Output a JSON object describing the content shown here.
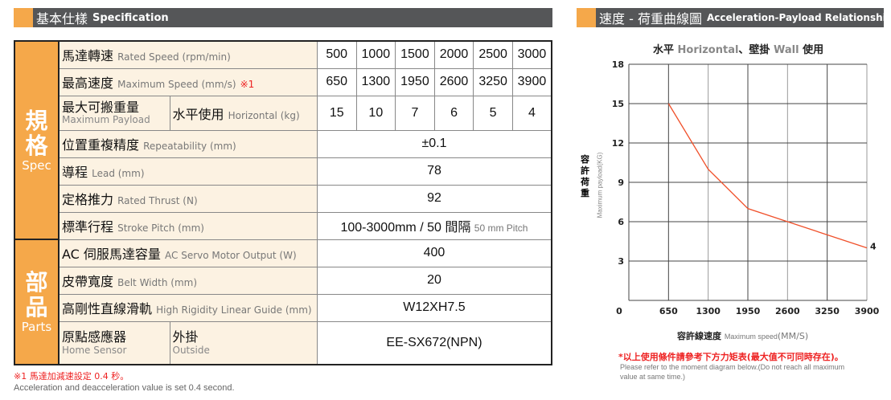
{
  "spec_header": {
    "zh": "基本仕樣",
    "en": "Specification"
  },
  "chart_header": {
    "zh": "速度 - 荷重曲線圖",
    "en": "Acceleration-Payload Relationship"
  },
  "sections": {
    "spec_zh1": "規",
    "spec_zh2": "格",
    "spec_en": "Spec",
    "parts_zh1": "部",
    "parts_zh2": "品",
    "parts_en": "Parts"
  },
  "rows": {
    "rated_speed": {
      "zh": "馬達轉速",
      "en": "Rated Speed (rpm/min)",
      "values": [
        "500",
        "1000",
        "1500",
        "2000",
        "2500",
        "3000"
      ]
    },
    "max_speed": {
      "zh": "最高速度",
      "en": "Maximum Speed (mm/s)",
      "mark": "※1",
      "values": [
        "650",
        "1300",
        "1950",
        "2600",
        "3250",
        "3900"
      ]
    },
    "payload": {
      "zh": "最大可搬重量",
      "en": "Maximum Payload",
      "sub_zh": "水平使用",
      "sub_en": "Horizontal (kg)",
      "values": [
        "15",
        "10",
        "7",
        "6",
        "5",
        "4"
      ]
    },
    "repeatability": {
      "zh": "位置重複精度",
      "en": "Repeatability (mm)",
      "value": "±0.1"
    },
    "lead": {
      "zh": "導程",
      "en": "Lead (mm)",
      "value": "78"
    },
    "thrust": {
      "zh": "定格推力",
      "en": "Rated Thrust (N)",
      "value": "92"
    },
    "stroke": {
      "zh": "標準行程",
      "en": "Stroke Pitch (mm)",
      "value": "100-3000mm / 50 間隔",
      "value_en": "50 mm Pitch"
    },
    "motor": {
      "zh": "AC 伺服馬達容量",
      "en": "AC Servo Motor Output (W)",
      "value": "400"
    },
    "belt": {
      "zh": "皮帶寬度",
      "en": "Belt Width (mm)",
      "value": "20"
    },
    "guide": {
      "zh": "高剛性直線滑軌",
      "en": "High Rigidity Linear Guide (mm)",
      "value": "W12XH7.5"
    },
    "sensor": {
      "zh": "原點感應器",
      "en": "Home Sensor",
      "sub_zh": "外掛",
      "sub_en": "Outside",
      "value": "EE-SX672(NPN)"
    }
  },
  "footnote": {
    "zh": "※1 馬達加減速設定 0.4 秒。",
    "en": "Acceleration and deacceleration value is set 0.4 second."
  },
  "chart_note": {
    "zh": "*以上使用條件請參考下方力矩表(最大值不可同時存在)。",
    "en1": "Please refer to the moment diagram below.(Do not reach all maximum",
    "en2": "value at same time.)"
  },
  "chart_data": {
    "type": "line",
    "title_parts": {
      "a": "水平",
      "b": "Horizontal",
      "c": "、壁掛",
      "d": "Wall",
      "e": "使用"
    },
    "xlabel_zh": "容許線速度",
    "xlabel_en": "Maximum speed",
    "xlabel_unit": "(MM/S)",
    "ylabel_zh": [
      "容",
      "許",
      "荷",
      "重"
    ],
    "ylabel_en": "Maximum payload(KG)",
    "x": [
      650,
      1300,
      1950,
      2600,
      3250,
      3900
    ],
    "y": [
      15,
      10,
      7,
      6,
      5,
      4
    ],
    "xlim": [
      0,
      3900
    ],
    "ylim": [
      0,
      18
    ],
    "xticks": [
      "0",
      "650",
      "1300",
      "1950",
      "2600",
      "3250",
      "3900"
    ],
    "yticks": [
      "3",
      "6",
      "9",
      "12",
      "15",
      "18"
    ],
    "end_label": "4",
    "grid": true,
    "line_color": "#f0502a"
  }
}
